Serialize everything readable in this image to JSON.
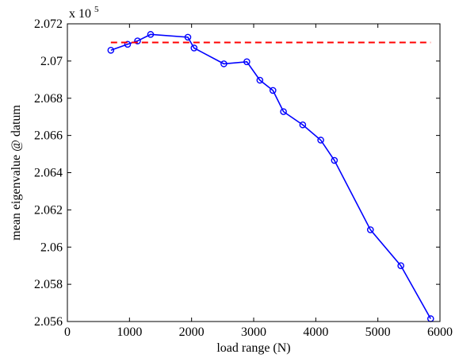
{
  "chart_data": {
    "type": "line",
    "title": "",
    "xlabel": "load range (N)",
    "ylabel": "mean eigenvalue @ datum",
    "y_multiplier_label": "x 10",
    "y_multiplier_exponent": "5",
    "xlim": [
      0,
      6000
    ],
    "ylim": [
      2.056,
      2.072
    ],
    "x_ticks": [
      0,
      1000,
      2000,
      3000,
      4000,
      5000,
      6000
    ],
    "x_tick_labels": [
      "0",
      "1000",
      "2000",
      "3000",
      "4000",
      "5000",
      "6000"
    ],
    "y_ticks": [
      2.056,
      2.058,
      2.06,
      2.062,
      2.064,
      2.066,
      2.068,
      2.07,
      2.072
    ],
    "y_tick_labels": [
      "2.056",
      "2.058",
      "2.06",
      "2.062",
      "2.064",
      "2.066",
      "2.068",
      "2.07",
      "2.072"
    ],
    "grid": false,
    "legend": "none",
    "series": [
      {
        "style": "solid",
        "marker": "circle",
        "color": "#0000ff",
        "x": [
          700,
          970,
          1130,
          1340,
          1940,
          2040,
          2520,
          2890,
          3100,
          3310,
          3480,
          3790,
          4080,
          4300,
          4880,
          5370,
          5850
        ],
        "y": [
          2.07058,
          2.0709,
          2.07108,
          2.07143,
          2.07128,
          2.0707,
          2.06985,
          2.06996,
          2.06897,
          2.06842,
          2.06728,
          2.06657,
          2.06575,
          2.06466,
          2.06093,
          2.059,
          2.05615
        ]
      },
      {
        "style": "dashed",
        "marker": "none",
        "color": "#ff0000",
        "x": [
          700,
          5850
        ],
        "y": [
          2.071,
          2.071
        ]
      }
    ]
  }
}
